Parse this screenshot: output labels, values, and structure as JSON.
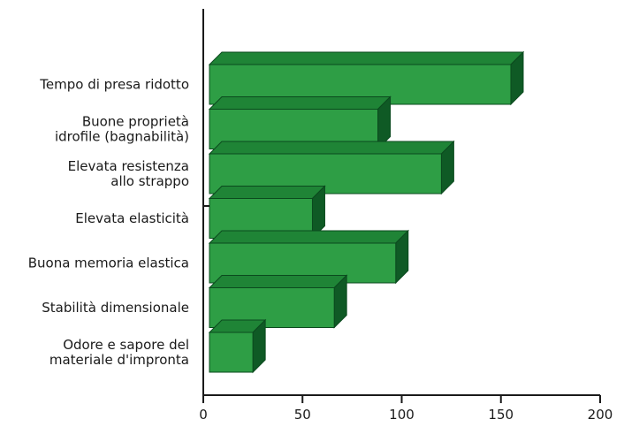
{
  "chart_data": {
    "type": "bar",
    "orientation": "horizontal",
    "style": "3d",
    "categories": [
      [
        "Tempo di presa ridotto"
      ],
      [
        "Buone proprietà",
        "idrofile (bagnabilità)"
      ],
      [
        "Elevata resistenza",
        "allo strappo"
      ],
      [
        "Elevata elasticità"
      ],
      [
        "Buona memoria elastica"
      ],
      [
        "Stabilità dimensionale"
      ],
      [
        "Odore e sapore del",
        "materiale d'impronta"
      ]
    ],
    "values": [
      155,
      88,
      120,
      55,
      97,
      66,
      25
    ],
    "xlim": [
      0,
      200
    ],
    "xticks": [
      0,
      50,
      100,
      150,
      200
    ],
    "xtick_labels": [
      "0",
      "50",
      "100",
      "150",
      "200"
    ],
    "title": "",
    "xlabel": "",
    "ylabel": "",
    "grid": false,
    "colors": {
      "bar_face": "#2e9e45",
      "bar_top": "#1f8436",
      "bar_side": "#0f5a25",
      "bar_outline": "#0b4a1e",
      "axis": "#1a1a1a"
    }
  }
}
